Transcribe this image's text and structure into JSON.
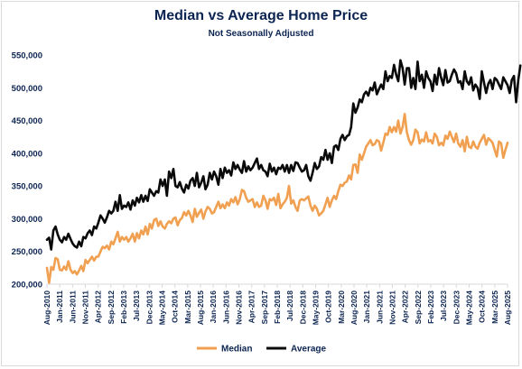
{
  "chart_data": {
    "type": "line",
    "title": "Median vs Average Home Price",
    "subtitle": "Not Seasonally Adjusted",
    "xlabel": "",
    "ylabel": "",
    "ylim": [
      200000,
      550000
    ],
    "y_ticks": [
      {
        "value": 200000,
        "label": "200,000"
      },
      {
        "value": 250000,
        "label": "250,000"
      },
      {
        "value": 300000,
        "label": "300,000"
      },
      {
        "value": 350000,
        "label": "350,000"
      },
      {
        "value": 400000,
        "label": "400,000"
      },
      {
        "value": 450000,
        "label": "450,000"
      },
      {
        "value": 500000,
        "label": "500,000"
      },
      {
        "value": 550000,
        "label": "550,000"
      }
    ],
    "x_tick_labels": [
      "Aug-2010",
      "Jan-2011",
      "Jun-2011",
      "Nov-2011",
      "Apr-2012",
      "Sep-2012",
      "Feb-2013",
      "Jul-2013",
      "Dec-2013",
      "May-2014",
      "Oct-2014",
      "Mar-2015",
      "Aug-2015",
      "Jan-2016",
      "Jun-2016",
      "Nov-2016",
      "Apr-2017",
      "Sep-2017",
      "Feb-2018",
      "Jul-2018",
      "Dec-2018",
      "May-2019",
      "Oct-2019",
      "Mar-2020",
      "Aug-2020",
      "Jan-2021",
      "Jun-2021",
      "Nov-2021",
      "Apr-2022",
      "Sep-2022",
      "Feb-2023",
      "Jul-2023",
      "Dec-2023",
      "May-2024",
      "Oct-2024",
      "Mar-2025",
      "Aug-2025"
    ],
    "x_start": "Aug-2010",
    "x_end": "Aug-2025",
    "grid": false,
    "legend_position": "bottom",
    "series": [
      {
        "name": "Median",
        "color": "#f0a050",
        "values": [
          225000,
          202000,
          226000,
          222000,
          240000,
          238000,
          222000,
          221000,
          227000,
          222000,
          235000,
          222000,
          217000,
          220000,
          215000,
          221000,
          228000,
          220000,
          237000,
          232000,
          237000,
          242000,
          236000,
          242000,
          242000,
          250000,
          257000,
          255000,
          259000,
          253000,
          265000,
          261000,
          270000,
          280000,
          265000,
          272000,
          268000,
          272000,
          265000,
          270000,
          277000,
          265000,
          278000,
          270000,
          282000,
          276000,
          288000,
          276000,
          292000,
          285000,
          298000,
          300000,
          289000,
          296000,
          288000,
          285000,
          292000,
          296000,
          293000,
          300000,
          302000,
          290000,
          298000,
          301000,
          310000,
          305000,
          312000,
          305000,
          295000,
          315000,
          303000,
          309000,
          314000,
          300000,
          311000,
          318000,
          315000,
          308000,
          310000,
          318000,
          326000,
          316000,
          322000,
          316000,
          325000,
          320000,
          330000,
          325000,
          333000,
          322000,
          330000,
          344000,
          342000,
          332000,
          326000,
          328000,
          330000,
          318000,
          325000,
          318000,
          320000,
          335000,
          328000,
          315000,
          330000,
          328000,
          332000,
          321000,
          338000,
          316000,
          322000,
          326000,
          332000,
          350000,
          323000,
          328000,
          318000,
          312000,
          328000,
          330000,
          328000,
          331000,
          334000,
          320000,
          312000,
          320000,
          315000,
          305000,
          308000,
          312000,
          322000,
          332000,
          318000,
          328000,
          335000,
          330000,
          342000,
          352000,
          350000,
          355000,
          357000,
          366000,
          360000,
          382000,
          383000,
          370000,
          398000,
          390000,
          400000,
          410000,
          415000,
          420000,
          412000,
          414000,
          420000,
          418000,
          404000,
          416000,
          430000,
          428000,
          440000,
          432000,
          440000,
          433000,
          450000,
          430000,
          440000,
          460000,
          432000,
          420000,
          413000,
          420000,
          436000,
          432000,
          415000,
          421000,
          418000,
          432000,
          418000,
          420000,
          415000,
          430000,
          425000,
          412000,
          416000,
          412000,
          427000,
          422000,
          433000,
          425000,
          417000,
          430000,
          415000,
          410000,
          420000,
          403000,
          425000,
          410000,
          408000,
          418000,
          410000,
          407000,
          416000,
          422000,
          428000,
          413000,
          423000,
          420000,
          416000,
          405000,
          395000,
          418000,
          415000,
          393000,
          405000,
          416000
        ]
      },
      {
        "name": "Average",
        "color": "#0a0a0a",
        "values": [
          268000,
          271000,
          253000,
          282000,
          288000,
          276000,
          268000,
          264000,
          272000,
          268000,
          277000,
          269000,
          262000,
          258000,
          256000,
          265000,
          258000,
          272000,
          270000,
          278000,
          282000,
          275000,
          288000,
          285000,
          294000,
          305000,
          300000,
          294000,
          302000,
          312000,
          308000,
          312000,
          326000,
          312000,
          336000,
          315000,
          320000,
          318000,
          325000,
          314000,
          328000,
          320000,
          332000,
          325000,
          336000,
          326000,
          335000,
          327000,
          345000,
          340000,
          335000,
          342000,
          340000,
          360000,
          350000,
          360000,
          335000,
          372000,
          362000,
          376000,
          350000,
          348000,
          356000,
          346000,
          340000,
          352000,
          346000,
          358000,
          362000,
          350000,
          370000,
          348000,
          355000,
          365000,
          345000,
          352000,
          370000,
          360000,
          372000,
          365000,
          352000,
          376000,
          362000,
          378000,
          370000,
          374000,
          366000,
          386000,
          376000,
          382000,
          375000,
          370000,
          388000,
          372000,
          380000,
          374000,
          378000,
          385000,
          392000,
          376000,
          382000,
          374000,
          372000,
          365000,
          384000,
          372000,
          378000,
          368000,
          378000,
          376000,
          382000,
          372000,
          382000,
          370000,
          382000,
          373000,
          386000,
          385000,
          378000,
          372000,
          374000,
          382000,
          365000,
          358000,
          370000,
          385000,
          376000,
          380000,
          394000,
          390000,
          405000,
          390000,
          400000,
          385000,
          410000,
          412000,
          405000,
          422000,
          428000,
          420000,
          426000,
          428000,
          440000,
          476000,
          462000,
          470000,
          482000,
          478000,
          490000,
          494000,
          488000,
          500000,
          496000,
          508000,
          490000,
          498000,
          505000,
          498000,
          525000,
          510000,
          518000,
          515000,
          535000,
          520000,
          510000,
          542000,
          530000,
          505000,
          530000,
          530000,
          500000,
          515000,
          498000,
          540000,
          510000,
          520000,
          500000,
          525000,
          515000,
          510000,
          495000,
          520000,
          505000,
          530000,
          515000,
          504000,
          527000,
          508000,
          510000,
          520000,
          528000,
          522000,
          508000,
          510000,
          498000,
          525000,
          510000,
          505000,
          516000,
          496000,
          505000,
          500000,
          483000,
          525000,
          508000,
          492000,
          506000,
          512000,
          498000,
          515000,
          512000,
          505000,
          498000,
          516000,
          510000,
          504000,
          492000,
          512000,
          518000,
          478000,
          512000,
          534000
        ]
      }
    ]
  }
}
